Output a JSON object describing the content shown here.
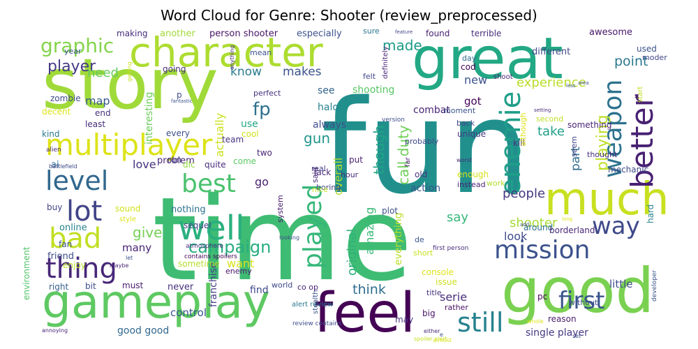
{
  "title": "Word Cloud for Genre: Shooter (review_preprocessed)",
  "words": [
    {
      "text": "fun",
      "color": "#21908d"
    },
    {
      "text": "time",
      "color": "#3fbc73"
    },
    {
      "text": "story",
      "color": "#a0da39"
    },
    {
      "text": "great",
      "color": "#22a884"
    },
    {
      "text": "gameplay",
      "color": "#5ec962"
    },
    {
      "text": "good",
      "color": "#7ad151"
    },
    {
      "text": "feel",
      "color": "#440154"
    },
    {
      "text": "character",
      "color": "#addc30"
    },
    {
      "text": "much",
      "color": "#c8e020"
    },
    {
      "text": "multiplayer",
      "color": "#dde318"
    },
    {
      "text": "well",
      "color": "#2ab07f"
    },
    {
      "text": "mission",
      "color": "#3b528b"
    },
    {
      "text": "level",
      "color": "#31688e"
    },
    {
      "text": "best",
      "color": "#4ac16d"
    },
    {
      "text": "lot",
      "color": "#414487"
    },
    {
      "text": "thing",
      "color": "#482878"
    },
    {
      "text": "bad",
      "color": "#c2df23"
    },
    {
      "text": "still",
      "color": "#26828e"
    },
    {
      "text": "first",
      "color": "#39568c"
    },
    {
      "text": "better",
      "color": "#482173"
    },
    {
      "text": "weapon",
      "color": "#2c728e"
    },
    {
      "text": "enemie",
      "color": "#1f9e89"
    },
    {
      "text": "played",
      "color": "#35b779"
    },
    {
      "text": "way",
      "color": "#3e4989"
    },
    {
      "text": "graphic",
      "color": "#84d44b"
    },
    {
      "text": "player",
      "color": "#443983"
    },
    {
      "text": "campaign",
      "color": "#27ad81"
    },
    {
      "text": "fp",
      "color": "#2d708e"
    },
    {
      "text": "made",
      "color": "#1e9b8a"
    },
    {
      "text": "need",
      "color": "#65cb5e"
    },
    {
      "text": "know",
      "color": "#297b8e"
    },
    {
      "text": "makes",
      "color": "#3b528b"
    },
    {
      "text": "point",
      "color": "#2a788e"
    },
    {
      "text": "experience",
      "color": "#b8de29"
    },
    {
      "text": "gun",
      "color": "#1f968b"
    },
    {
      "text": "call duty",
      "color": "#6ece58"
    },
    {
      "text": "though",
      "color": "#20a486"
    },
    {
      "text": "playing",
      "color": "#bddf26"
    },
    {
      "text": "shooter",
      "color": "#a5db36"
    },
    {
      "text": "people",
      "color": "#453781"
    },
    {
      "text": "give",
      "color": "#75d054"
    },
    {
      "text": "map",
      "color": "#38598c"
    },
    {
      "text": "love",
      "color": "#46327e"
    },
    {
      "text": "think",
      "color": "#2e6e8e"
    },
    {
      "text": "actually",
      "color": "#cae11f"
    },
    {
      "text": "take",
      "color": "#1fa088"
    },
    {
      "text": "part",
      "color": "#2f6c8e"
    },
    {
      "text": "say",
      "color": "#35b779"
    },
    {
      "text": "original",
      "color": "#2db27d"
    },
    {
      "text": "amazing",
      "color": "#38b977"
    },
    {
      "text": "look",
      "color": "#3e4a89"
    },
    {
      "text": "serie",
      "color": "#472d7b"
    },
    {
      "text": "want",
      "color": "#d8e219"
    },
    {
      "text": "many",
      "color": "#482475"
    },
    {
      "text": "control",
      "color": "#39558c"
    },
    {
      "text": "action",
      "color": "#3a548c"
    },
    {
      "text": "little",
      "color": "#3d4e8a"
    },
    {
      "text": "new",
      "color": "#3b528b"
    },
    {
      "text": "got",
      "color": "#440154"
    },
    {
      "text": "see",
      "color": "#33638d"
    },
    {
      "text": "go",
      "color": "#481f70"
    },
    {
      "text": "halo",
      "color": "#26828e"
    },
    {
      "text": "always",
      "color": "#3e4c8a"
    },
    {
      "text": "overall",
      "color": "#b0dd2f"
    },
    {
      "text": "everything",
      "color": "#bade28"
    },
    {
      "text": "shooting",
      "color": "#58c765"
    },
    {
      "text": "combat",
      "color": "#482576"
    },
    {
      "text": "find",
      "color": "#3e4989"
    },
    {
      "text": "franchise",
      "color": "#433e85"
    },
    {
      "text": "good good",
      "color": "#31688e"
    },
    {
      "text": "single player",
      "color": "#453882"
    },
    {
      "text": "interesting",
      "color": "#6ccd5a"
    },
    {
      "text": "use",
      "color": "#22a785"
    },
    {
      "text": "problem",
      "color": "#482878"
    },
    {
      "text": "online",
      "color": "#25838e"
    },
    {
      "text": "nothing",
      "color": "#2d718e"
    },
    {
      "text": "sometime",
      "color": "#b5de2b"
    },
    {
      "text": "enemy",
      "color": "#481467"
    },
    {
      "text": "never",
      "color": "#46307e"
    },
    {
      "text": "bit",
      "color": "#3d4d8a"
    },
    {
      "text": "must",
      "color": "#481b6d"
    },
    {
      "text": "right",
      "color": "#35608d"
    },
    {
      "text": "environment",
      "color": "#50c46a"
    },
    {
      "text": "friend",
      "color": "#3e4c8a"
    },
    {
      "text": "enjoy",
      "color": "#bade28"
    },
    {
      "text": "fan",
      "color": "#3a548c"
    },
    {
      "text": "buy",
      "color": "#404588"
    },
    {
      "text": "ai",
      "color": "#31688e"
    },
    {
      "text": "kind",
      "color": "#2a788e"
    },
    {
      "text": "decent",
      "color": "#dce319"
    },
    {
      "text": "zombie",
      "color": "#3e4989"
    },
    {
      "text": "end",
      "color": "#46327e"
    },
    {
      "text": "least",
      "color": "#472c7a"
    },
    {
      "text": "every",
      "color": "#3c4f8a"
    },
    {
      "text": "team",
      "color": "#46337f"
    },
    {
      "text": "cool",
      "color": "#d0e11c"
    },
    {
      "text": "dlc",
      "color": "#95d840"
    },
    {
      "text": "two",
      "color": "#482475"
    },
    {
      "text": "come",
      "color": "#5ac864"
    },
    {
      "text": "quite",
      "color": "#472a7a"
    },
    {
      "text": "sequel",
      "color": "#424086"
    },
    {
      "text": "sound",
      "color": "#d2e21b"
    },
    {
      "text": "style",
      "color": "#dde318"
    },
    {
      "text": "going",
      "color": "#472f7d"
    },
    {
      "text": "another",
      "color": "#a2da37"
    },
    {
      "text": "person shooter",
      "color": "#471365"
    },
    {
      "text": "especially",
      "color": "#3b528b"
    },
    {
      "text": "making",
      "color": "#472d7b"
    },
    {
      "text": "sure",
      "color": "#2a768e"
    },
    {
      "text": "found",
      "color": "#482173"
    },
    {
      "text": "terrible",
      "color": "#472d7b"
    },
    {
      "text": "different",
      "color": "#3f4788"
    },
    {
      "text": "awesome",
      "color": "#481668"
    },
    {
      "text": "year",
      "color": "#3b528b"
    },
    {
      "text": "mean",
      "color": "#3b528b"
    },
    {
      "text": "felt",
      "color": "#404588"
    },
    {
      "text": "cod",
      "color": "#440154"
    },
    {
      "text": "day",
      "color": "#2f6b8e"
    },
    {
      "text": "perfect",
      "color": "#46307e"
    },
    {
      "text": "moment",
      "color": "#3a548c"
    },
    {
      "text": "second",
      "color": "#bddf26"
    },
    {
      "text": "unique",
      "color": "#443a83"
    },
    {
      "text": "back",
      "color": "#404688"
    },
    {
      "text": "lack",
      "color": "#482878"
    },
    {
      "text": "put",
      "color": "#481d6f"
    },
    {
      "text": "real",
      "color": "#423f85"
    },
    {
      "text": "boring",
      "color": "#414487"
    },
    {
      "text": "plot",
      "color": "#3c4f8a"
    },
    {
      "text": "instead",
      "color": "#481f70"
    },
    {
      "text": "old",
      "color": "#46337f"
    },
    {
      "text": "nice",
      "color": "#c0df25"
    },
    {
      "text": "said",
      "color": "#482677"
    },
    {
      "text": "hour",
      "color": "#482878"
    },
    {
      "text": "enough",
      "color": "#d5e21a"
    },
    {
      "text": "kill",
      "color": "#46307e"
    },
    {
      "text": "mechanic",
      "color": "#3e4a89"
    },
    {
      "text": "work",
      "color": "#b2dd2d"
    },
    {
      "text": "around",
      "color": "#2e6f8e"
    },
    {
      "text": "borderland",
      "color": "#482878"
    },
    {
      "text": "hard",
      "color": "#26828e"
    },
    {
      "text": "without",
      "color": "#3e4c8a"
    },
    {
      "text": "pc",
      "color": "#440154"
    },
    {
      "text": "reason",
      "color": "#481b6d"
    },
    {
      "text": "issue",
      "color": "#cde11d"
    },
    {
      "text": "title",
      "color": "#46327e"
    },
    {
      "text": "rather",
      "color": "#471063"
    },
    {
      "text": "big",
      "color": "#481467"
    },
    {
      "text": "may",
      "color": "#472f7d"
    },
    {
      "text": "console",
      "color": "#dde318"
    },
    {
      "text": "short",
      "color": "#c8e020"
    },
    {
      "text": "de",
      "color": "#39568c"
    },
    {
      "text": "world",
      "color": "#3e4989"
    },
    {
      "text": "co op",
      "color": "#482374"
    },
    {
      "text": "system",
      "color": "#481a6c"
    },
    {
      "text": "stealth",
      "color": "#3b528b"
    },
    {
      "text": "probably",
      "color": "#3e4989"
    },
    {
      "text": "far",
      "color": "#481f70"
    },
    {
      "text": "something",
      "color": "#482475"
    },
    {
      "text": "thought",
      "color": "#472d7b"
    },
    {
      "text": "seem",
      "color": "#404688"
    },
    {
      "text": "although",
      "color": "#dde318"
    },
    {
      "text": "start",
      "color": "#c2df23"
    },
    {
      "text": "shoot",
      "color": "#482878"
    },
    {
      "text": "moder",
      "color": "#414487"
    },
    {
      "text": "и",
      "color": "#481b6d"
    },
    {
      "text": "used",
      "color": "#3b528b"
    },
    {
      "text": "definitely",
      "color": "#482677"
    },
    {
      "text": "version",
      "color": "#3e4c8a"
    },
    {
      "text": "worst",
      "color": "#482878"
    },
    {
      "text": "first person",
      "color": "#472c7a"
    },
    {
      "text": "spoiler alert",
      "color": "#c8e020"
    },
    {
      "text": "alert review",
      "color": "#2a788e"
    },
    {
      "text": "review contains",
      "color": "#3e4c8a"
    },
    {
      "text": "contains spoilers",
      "color": "#440154"
    },
    {
      "text": "developer",
      "color": "#3b528b"
    },
    {
      "text": "atmosphere",
      "color": "#46327e"
    },
    {
      "text": "alien",
      "color": "#482878"
    },
    {
      "text": "battlefield",
      "color": "#3e4989"
    },
    {
      "text": "annoying",
      "color": "#482475"
    },
    {
      "text": "getting",
      "color": "#c8e020"
    },
    {
      "text": "fantastic",
      "color": "#3b528b"
    },
    {
      "text": "anything",
      "color": "#472d7b"
    },
    {
      "text": "feature",
      "color": "#414487"
    },
    {
      "text": "area",
      "color": "#3e4c8a"
    },
    {
      "text": "less",
      "color": "#3b528b"
    },
    {
      "text": "setting",
      "color": "#482878"
    },
    {
      "text": "add",
      "color": "#3e4989"
    },
    {
      "text": "long",
      "color": "#dde318"
    },
    {
      "text": "looking",
      "color": "#3e4c8a"
    },
    {
      "text": "maybe",
      "color": "#482475"
    },
    {
      "text": "let",
      "color": "#3b528b"
    },
    {
      "text": "whole",
      "color": "#dde318"
    },
    {
      "text": "either",
      "color": "#482878"
    },
    {
      "text": "almost",
      "color": "#dde318"
    },
    {
      "text": "set",
      "color": "#3e4c8a"
    },
    {
      "text": "e",
      "color": "#3b528b"
    },
    {
      "text": "p",
      "color": "#3e4989"
    },
    {
      "text": "run",
      "color": "#433e85"
    }
  ]
}
